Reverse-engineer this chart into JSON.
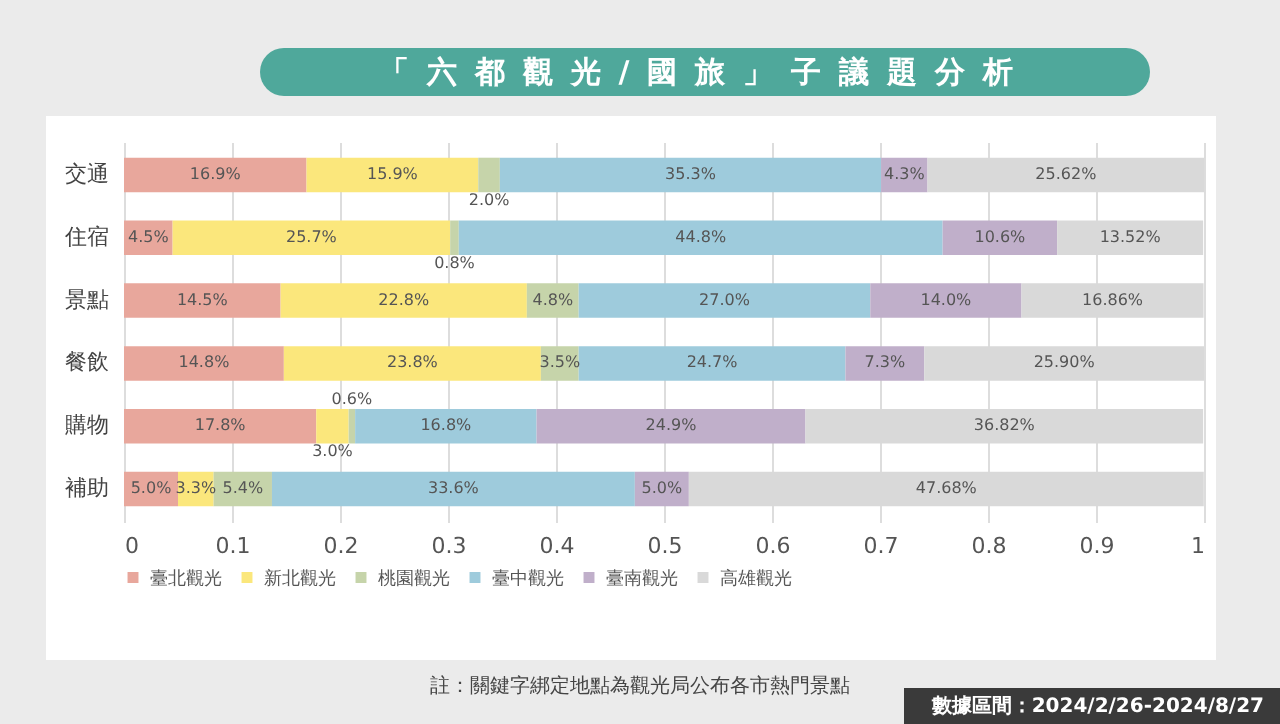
{
  "chart_data": {
    "type": "bar",
    "orientation": "horizontal",
    "stacked": true,
    "title": "「六都觀光/國旅」子議題分析",
    "categories": [
      "交通",
      "住宿",
      "景點",
      "餐飲",
      "購物",
      "補助"
    ],
    "series": [
      {
        "name": "臺北觀光",
        "color": "#e8a79c",
        "values": [
          0.169,
          0.045,
          0.145,
          0.148,
          0.178,
          0.05
        ],
        "value_labels": [
          "16.9%",
          "4.5%",
          "14.5%",
          "14.8%",
          "17.8%",
          "5.0%"
        ]
      },
      {
        "name": "新北觀光",
        "color": "#fbe77c",
        "values": [
          0.159,
          0.257,
          0.228,
          0.238,
          0.03,
          0.033
        ],
        "value_labels": [
          "15.9%",
          "25.7%",
          "22.8%",
          "23.8%",
          "3.0%",
          "3.3%"
        ]
      },
      {
        "name": "桃園觀光",
        "color": "#c6d4aa",
        "values": [
          0.02,
          0.008,
          0.048,
          0.035,
          0.006,
          0.054
        ],
        "value_labels": [
          "2.0%",
          "0.8%",
          "4.8%",
          "3.5%",
          "0.6%",
          "5.4%"
        ]
      },
      {
        "name": "臺中觀光",
        "color": "#9ecbdc",
        "values": [
          0.353,
          0.448,
          0.27,
          0.247,
          0.168,
          0.336
        ],
        "value_labels": [
          "35.3%",
          "44.8%",
          "27.0%",
          "24.7%",
          "16.8%",
          "33.6%"
        ]
      },
      {
        "name": "臺南觀光",
        "color": "#c0afca",
        "values": [
          0.043,
          0.106,
          0.14,
          0.073,
          0.249,
          0.05
        ],
        "value_labels": [
          "4.3%",
          "10.6%",
          "14.0%",
          "7.3%",
          "24.9%",
          "5.0%"
        ]
      },
      {
        "name": "高雄觀光",
        "color": "#d9d9d9",
        "values": [
          0.2562,
          0.1352,
          0.1686,
          0.259,
          0.3682,
          0.4768
        ],
        "value_labels": [
          "25.62%",
          "13.52%",
          "16.86%",
          "25.90%",
          "36.82%",
          "47.68%"
        ]
      }
    ],
    "xlim": [
      0,
      1
    ],
    "xticks": [
      0,
      0.1,
      0.2,
      0.3,
      0.4,
      0.5,
      0.6,
      0.7,
      0.8,
      0.9,
      1
    ],
    "grid": "x",
    "legend": "bottom",
    "annotations": [
      "註：關鍵字綁定地點為觀光局公布各市熱門景點",
      "數據區間：2024/2/26-2024/8/27"
    ]
  }
}
